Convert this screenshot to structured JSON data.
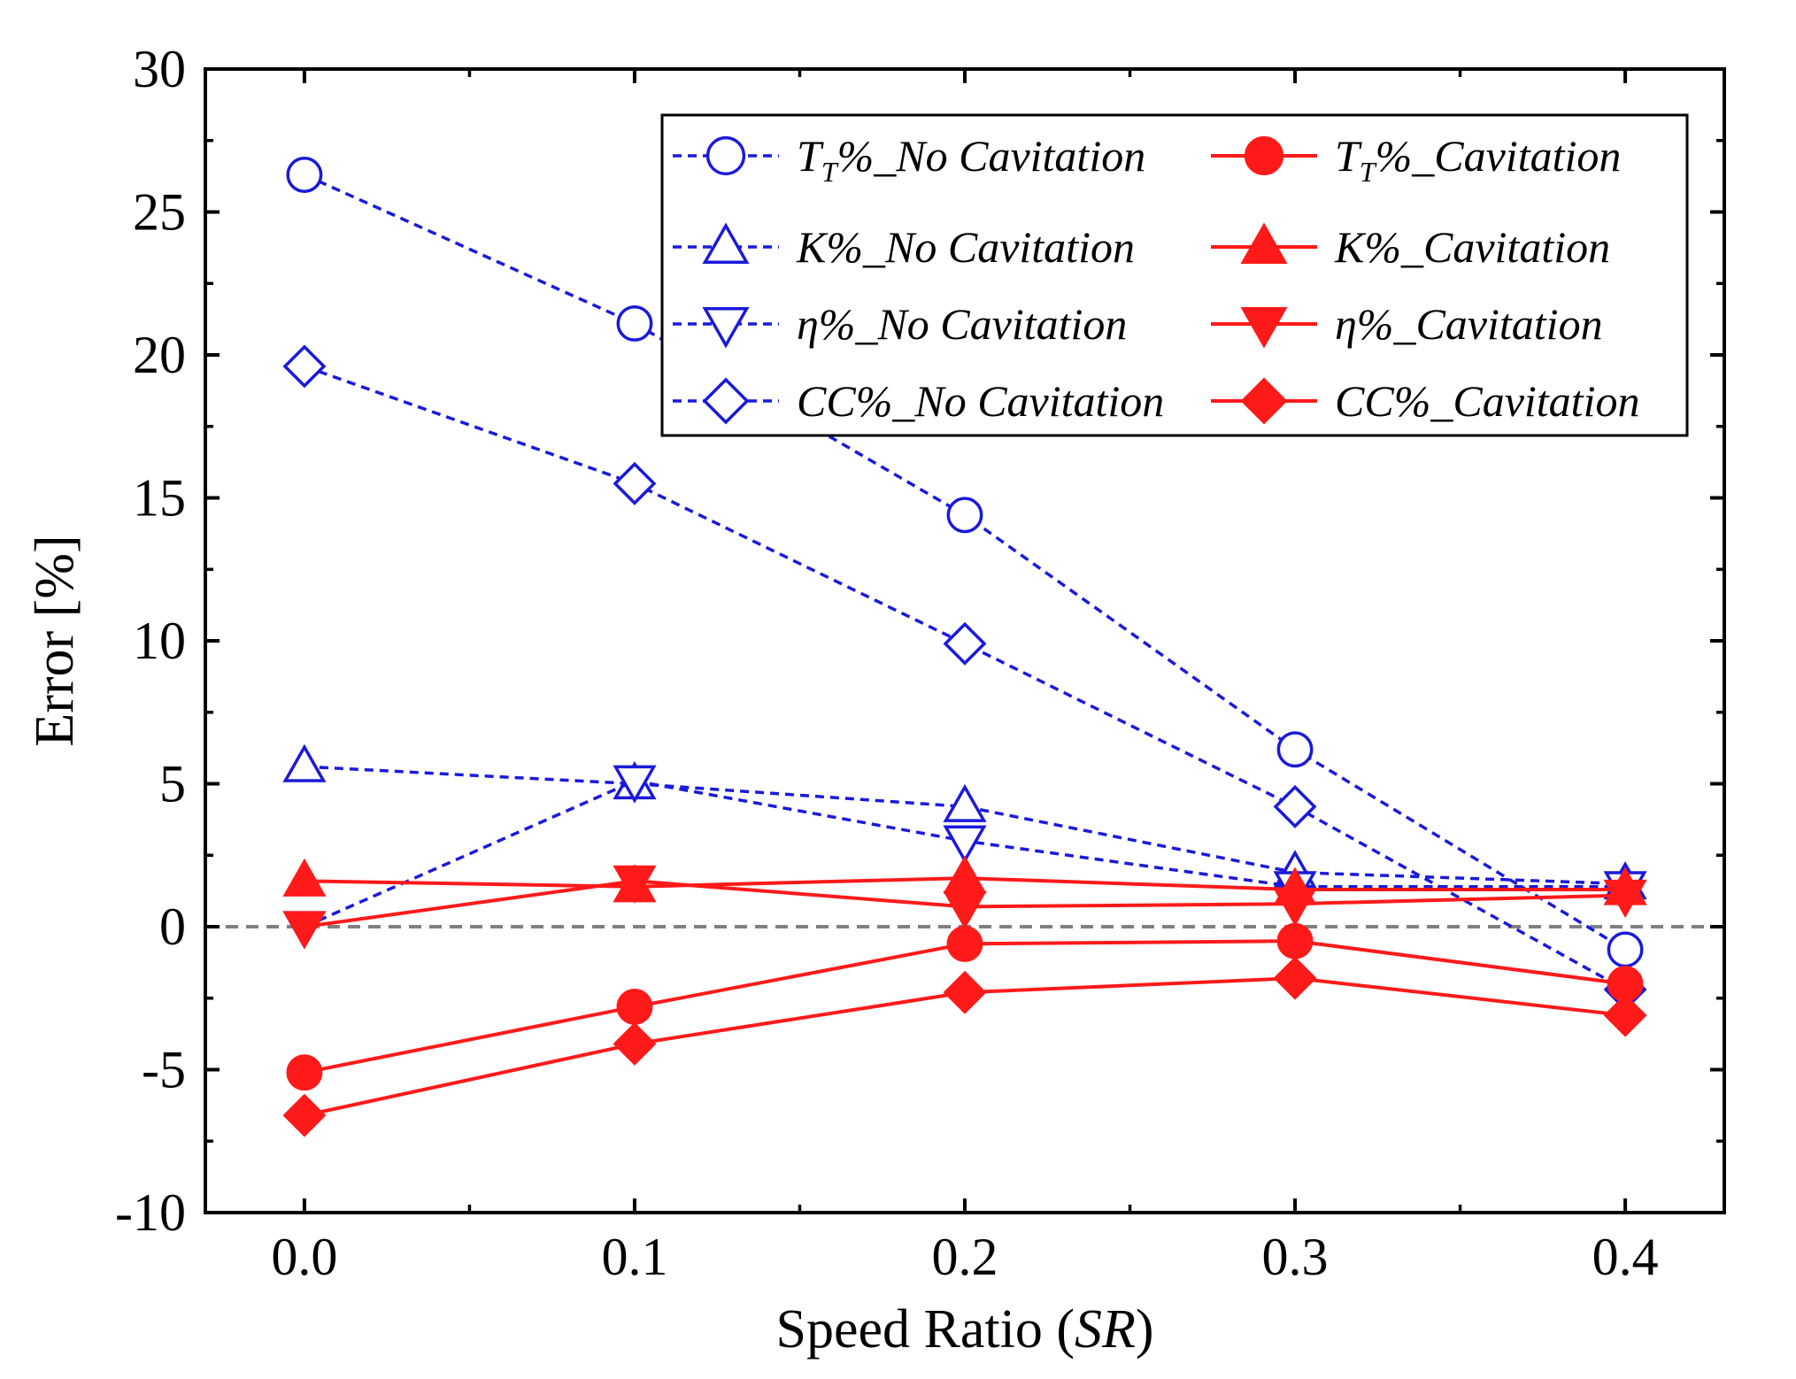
{
  "chart_data": {
    "type": "line",
    "title": "",
    "xlabel": "Speed Ratio (SR)",
    "xlabel_parts": {
      "prefix": "Speed Ratio (",
      "italic": "SR",
      "suffix": ")"
    },
    "ylabel": "Error [%]",
    "x": [
      0.0,
      0.1,
      0.2,
      0.3,
      0.4
    ],
    "x_tick_labels": [
      "0.0",
      "0.1",
      "0.2",
      "0.3",
      "0.4"
    ],
    "xlim": [
      -0.03,
      0.43
    ],
    "ylim": [
      -10,
      30
    ],
    "y_ticks": [
      -10,
      -5,
      0,
      5,
      10,
      15,
      20,
      25,
      30
    ],
    "y_tick_labels": [
      "-10",
      "-5",
      "0",
      "5",
      "10",
      "15",
      "20",
      "25",
      "30"
    ],
    "reference_line": {
      "y": 0,
      "style": "dashed",
      "color": "#808080"
    },
    "legend_position": "top-right",
    "colors": {
      "no_cavitation": "#1a1adb",
      "cavitation": "#ff1a1a"
    },
    "series": [
      {
        "name": "TT%_No Cavitation",
        "label_main": "T",
        "label_sub": "T",
        "label_rest": "%_No Cavitation",
        "marker": "circle",
        "filled": false,
        "line": "dashed",
        "color_key": "no_cavitation",
        "values": [
          26.3,
          21.1,
          14.4,
          6.2,
          -0.8
        ]
      },
      {
        "name": "TT%_Cavitation",
        "label_main": "T",
        "label_sub": "T",
        "label_rest": "%_Cavitation",
        "marker": "circle",
        "filled": true,
        "line": "solid",
        "color_key": "cavitation",
        "values": [
          -5.1,
          -2.8,
          -0.6,
          -0.5,
          -2.0
        ]
      },
      {
        "name": "K%_No Cavitation",
        "label_main": "K%_No Cavitation",
        "label_sub": "",
        "label_rest": "",
        "marker": "triangle-up",
        "filled": false,
        "line": "dashed",
        "color_key": "no_cavitation",
        "values": [
          5.6,
          5.0,
          4.2,
          1.9,
          1.5
        ]
      },
      {
        "name": "K%_Cavitation",
        "label_main": "K%_Cavitation",
        "label_sub": "",
        "label_rest": "",
        "marker": "triangle-up",
        "filled": true,
        "line": "solid",
        "color_key": "cavitation",
        "values": [
          1.6,
          1.4,
          1.7,
          1.3,
          1.3
        ]
      },
      {
        "name": "η%_No Cavitation",
        "label_main": "η%_No Cavitation",
        "label_sub": "",
        "label_rest": "",
        "marker": "triangle-down",
        "filled": false,
        "line": "dashed",
        "color_key": "no_cavitation",
        "values": [
          0.0,
          5.1,
          3.0,
          1.4,
          1.4
        ]
      },
      {
        "name": "η%_Cavitation",
        "label_main": "η%_Cavitation",
        "label_sub": "",
        "label_rest": "",
        "marker": "triangle-down",
        "filled": true,
        "line": "solid",
        "color_key": "cavitation",
        "values": [
          0.0,
          1.6,
          0.7,
          0.8,
          1.1
        ]
      },
      {
        "name": "CC%_No Cavitation",
        "label_main": "CC%_No Cavitation",
        "label_sub": "",
        "label_rest": "",
        "marker": "diamond",
        "filled": false,
        "line": "dashed",
        "color_key": "no_cavitation",
        "values": [
          19.6,
          15.5,
          9.9,
          4.2,
          -2.2
        ]
      },
      {
        "name": "CC%_Cavitation",
        "label_main": "CC%_Cavitation",
        "label_sub": "",
        "label_rest": "",
        "marker": "diamond",
        "filled": true,
        "line": "solid",
        "color_key": "cavitation",
        "values": [
          -6.6,
          -4.1,
          -2.3,
          -1.8,
          -3.1
        ]
      }
    ]
  }
}
